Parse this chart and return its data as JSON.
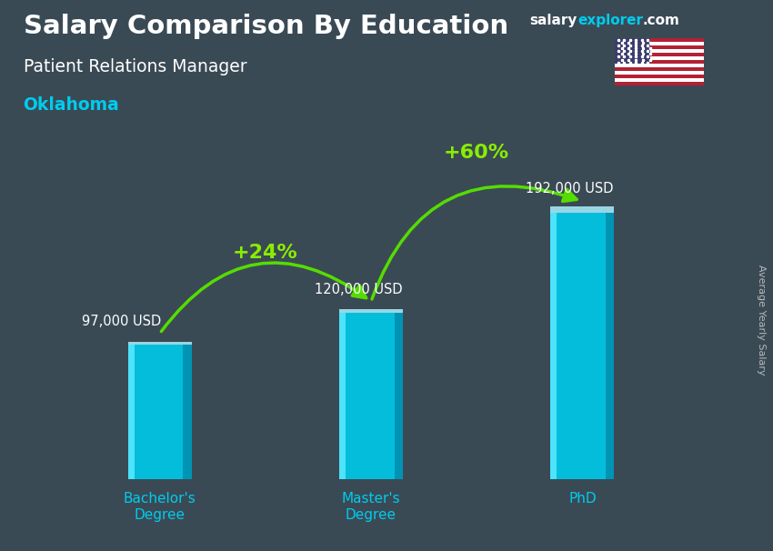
{
  "title": "Salary Comparison By Education",
  "subtitle": "Patient Relations Manager",
  "location": "Oklahoma",
  "ylabel": "Average Yearly Salary",
  "categories": [
    "Bachelor's\nDegree",
    "Master's\nDegree",
    "PhD"
  ],
  "values": [
    97000,
    120000,
    192000
  ],
  "value_labels": [
    "97,000 USD",
    "120,000 USD",
    "192,000 USD"
  ],
  "bar_color_front": "#00c8e8",
  "bar_color_left": "#55e8ff",
  "bar_color_right": "#0090b0",
  "bar_color_top": "#aaf0ff",
  "pct_labels": [
    "+24%",
    "+60%"
  ],
  "pct_color": "#88ee00",
  "arrow_color": "#55dd00",
  "title_color": "#ffffff",
  "subtitle_color": "#ffffff",
  "location_color": "#00ccee",
  "value_label_color": "#ffffff",
  "xtick_color": "#00ccee",
  "background_color": "#3a4a55",
  "ylim": [
    0,
    230000
  ],
  "bar_width": 0.3,
  "ylabel_color": "#cccccc",
  "brand_salary_color": "#ffffff",
  "brand_explorer_color": "#00ccee",
  "brand_com_color": "#ffffff"
}
